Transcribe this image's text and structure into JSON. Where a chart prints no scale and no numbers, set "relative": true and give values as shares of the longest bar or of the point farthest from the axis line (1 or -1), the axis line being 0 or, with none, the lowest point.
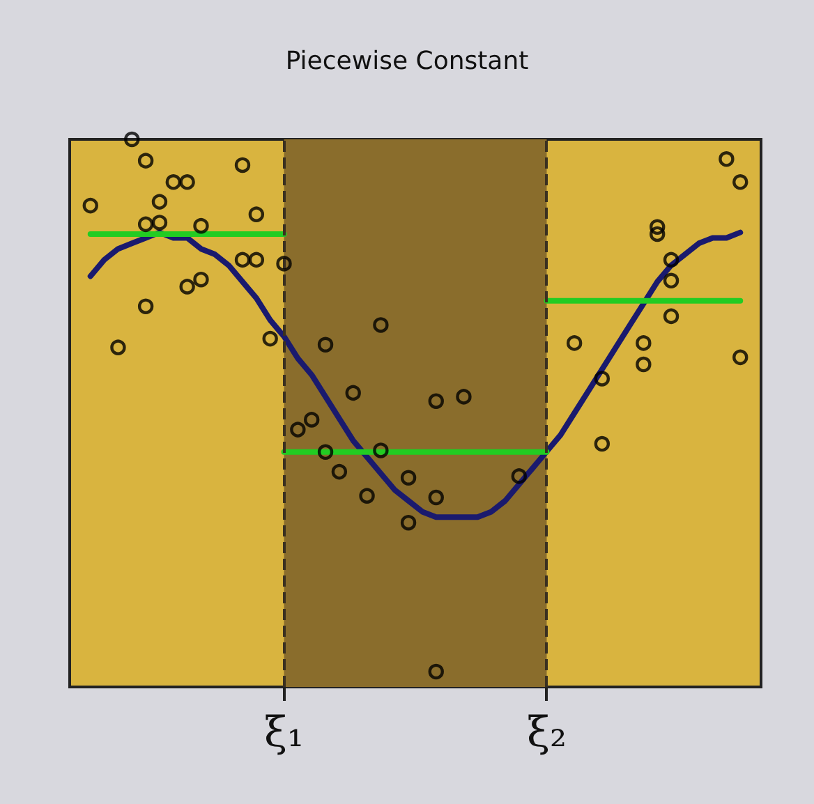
{
  "chart_data": {
    "type": "scatter",
    "title": "Piecewise Constant",
    "relative": true,
    "grid": false,
    "tick_labels": "x",
    "categories": [
      null,
      null,
      null,
      null,
      null,
      null,
      null,
      null,
      null,
      null,
      null,
      null,
      null,
      null,
      null,
      "ξ₁",
      null,
      null,
      null,
      null,
      null,
      null,
      null,
      null,
      null,
      null,
      null,
      null,
      null,
      null,
      null,
      null,
      null,
      null,
      "ξ₂",
      null,
      null,
      null,
      null,
      null,
      null,
      null,
      null,
      null,
      null,
      null,
      null,
      null,
      null,
      null
    ],
    "bands": [
      {
        "axis": "x",
        "from": "ξ₁",
        "to": "ξ₂",
        "color": "#8a6d2c"
      }
    ],
    "ref_lines": [
      {
        "axis": "x",
        "value": "ξ₁",
        "line_style": "dashed",
        "color": "#3a3020"
      },
      {
        "axis": "x",
        "value": "ξ₂",
        "line_style": "dashed",
        "color": "#3a3020"
      }
    ],
    "series": [
      {
        "type": "scatter",
        "color": "#000000",
        "marker": "circle",
        "values": [
          null,
          0.879,
          null,
          0.62,
          1.0,
          0.961,
          0.886,
          0.922,
          0.922,
          0.842,
          null,
          null,
          0.953,
          0.863,
          0.636,
          0.773,
          0.47,
          0.488,
          0.625,
          0.393,
          0.537,
          0.349,
          0.661,
          null,
          0.382,
          null,
          0.522,
          null,
          0.53,
          null,
          null,
          null,
          0.385,
          null,
          null,
          null,
          0.628,
          null,
          0.444,
          null,
          null,
          0.628,
          0.84,
          0.78,
          null,
          null,
          null,
          0.964,
          0.922,
          null
        ]
      },
      {
        "type": "scatter",
        "color": "#000000",
        "marker": "circle",
        "values": [
          null,
          null,
          null,
          null,
          null,
          0.845,
          0.848,
          null,
          0.731,
          0.744,
          null,
          null,
          0.78,
          0.78,
          null,
          null,
          null,
          null,
          0.429,
          null,
          null,
          null,
          0.432,
          null,
          0.3,
          null,
          0.346,
          null,
          null,
          null,
          null,
          null,
          null,
          null,
          null,
          null,
          null,
          null,
          0.563,
          null,
          null,
          0.589,
          0.827,
          0.742,
          null,
          null,
          null,
          null,
          0.602,
          null
        ]
      },
      {
        "type": "scatter",
        "color": "#000000",
        "marker": "circle",
        "values": [
          null,
          null,
          null,
          null,
          null,
          0.695,
          null,
          null,
          null,
          null,
          null,
          null,
          null,
          null,
          null,
          null,
          null,
          null,
          null,
          null,
          null,
          null,
          null,
          null,
          null,
          null,
          0.028,
          null,
          null,
          null,
          null,
          null,
          null,
          null,
          null,
          null,
          null,
          null,
          null,
          null,
          null,
          null,
          null,
          0.677,
          null,
          null,
          null,
          null,
          null,
          null
        ]
      },
      {
        "type": "line",
        "color": "#1a1a6e",
        "marker": "none",
        "values": [
          null,
          0.75,
          0.78,
          0.8,
          0.81,
          0.82,
          0.83,
          0.82,
          0.82,
          0.8,
          0.79,
          0.77,
          0.74,
          0.71,
          0.67,
          0.64,
          0.6,
          0.57,
          0.53,
          0.49,
          0.45,
          0.42,
          0.39,
          0.36,
          0.34,
          0.32,
          0.31,
          0.31,
          0.31,
          0.31,
          0.32,
          0.34,
          0.37,
          0.4,
          0.43,
          0.46,
          0.5,
          0.54,
          0.58,
          0.62,
          0.66,
          0.7,
          0.74,
          0.77,
          0.79,
          0.81,
          0.82,
          0.82,
          0.83,
          null
        ]
      },
      {
        "type": "line",
        "color": "#22cc22",
        "marker": "none",
        "values": [
          null,
          0.827,
          0.827,
          0.827,
          0.827,
          0.827,
          0.827,
          0.827,
          0.827,
          0.827,
          0.827,
          0.827,
          0.827,
          0.827,
          0.827,
          0.827,
          null,
          null,
          null,
          null,
          null,
          null,
          null,
          null,
          null,
          null,
          null,
          null,
          null,
          null,
          null,
          null,
          null,
          null,
          null,
          null,
          null,
          null,
          null,
          null,
          null,
          null,
          null,
          null,
          null,
          null,
          null,
          null,
          null,
          null
        ]
      },
      {
        "type": "line",
        "color": "#22cc22",
        "marker": "none",
        "values": [
          null,
          null,
          null,
          null,
          null,
          null,
          null,
          null,
          null,
          null,
          null,
          null,
          null,
          null,
          null,
          0.429,
          0.429,
          0.429,
          0.429,
          0.429,
          0.429,
          0.429,
          0.429,
          0.429,
          0.429,
          0.429,
          0.429,
          0.429,
          0.429,
          0.429,
          0.429,
          0.429,
          0.429,
          0.429,
          0.429,
          null,
          null,
          null,
          null,
          null,
          null,
          null,
          null,
          null,
          null,
          null,
          null,
          null,
          null,
          null
        ]
      },
      {
        "type": "line",
        "color": "#22cc22",
        "marker": "none",
        "values": [
          null,
          null,
          null,
          null,
          null,
          null,
          null,
          null,
          null,
          null,
          null,
          null,
          null,
          null,
          null,
          null,
          null,
          null,
          null,
          null,
          null,
          null,
          null,
          null,
          null,
          null,
          null,
          null,
          null,
          null,
          null,
          null,
          null,
          null,
          0.705,
          0.705,
          0.705,
          0.705,
          0.705,
          0.705,
          0.705,
          0.705,
          0.705,
          0.705,
          0.705,
          0.705,
          0.705,
          0.705,
          0.705,
          null
        ]
      }
    ]
  }
}
